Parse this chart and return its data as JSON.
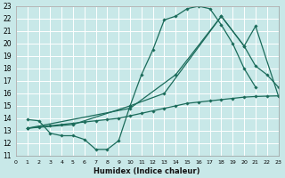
{
  "bg_color": "#c8e8e8",
  "line_color": "#1a6b5a",
  "grid_color": "#ffffff",
  "xlabel": "Humidex (Indice chaleur)",
  "xlim": [
    0,
    23
  ],
  "ylim": [
    11,
    23
  ],
  "xticks": [
    0,
    1,
    2,
    3,
    4,
    5,
    6,
    7,
    8,
    9,
    10,
    11,
    12,
    13,
    14,
    15,
    16,
    17,
    18,
    19,
    20,
    21,
    22,
    23
  ],
  "yticks": [
    11,
    12,
    13,
    14,
    15,
    16,
    17,
    18,
    19,
    20,
    21,
    22,
    23
  ],
  "line1_x": [
    1,
    2,
    3,
    4,
    5,
    6,
    7,
    8,
    9,
    10,
    11,
    12,
    13,
    14,
    15,
    16,
    17,
    18,
    19,
    20,
    21
  ],
  "line1_y": [
    13.9,
    13.8,
    12.8,
    12.6,
    12.6,
    12.3,
    11.5,
    11.5,
    12.2,
    15.0,
    17.5,
    19.5,
    21.9,
    22.2,
    22.8,
    23.0,
    22.8,
    21.5,
    20.0,
    18.0,
    16.5
  ],
  "line2_x": [
    1,
    2,
    3,
    4,
    5,
    6,
    7,
    8,
    9,
    10,
    11,
    12,
    13,
    14,
    15,
    16,
    17,
    18,
    19,
    20,
    21,
    22,
    23
  ],
  "line2_y": [
    13.2,
    13.3,
    13.4,
    13.5,
    13.6,
    13.7,
    13.8,
    13.9,
    14.0,
    14.2,
    14.4,
    14.6,
    14.8,
    15.0,
    15.2,
    15.3,
    15.4,
    15.5,
    15.6,
    15.7,
    15.75,
    15.78,
    15.8
  ],
  "line3_x": [
    1,
    5,
    10,
    13,
    18,
    20,
    21,
    22,
    23
  ],
  "line3_y": [
    13.2,
    13.5,
    15.0,
    16.0,
    22.2,
    19.8,
    18.2,
    17.5,
    16.5
  ],
  "line4_x": [
    1,
    10,
    14,
    18,
    20,
    21,
    23
  ],
  "line4_y": [
    13.2,
    14.8,
    17.5,
    22.2,
    19.8,
    21.4,
    15.8
  ]
}
